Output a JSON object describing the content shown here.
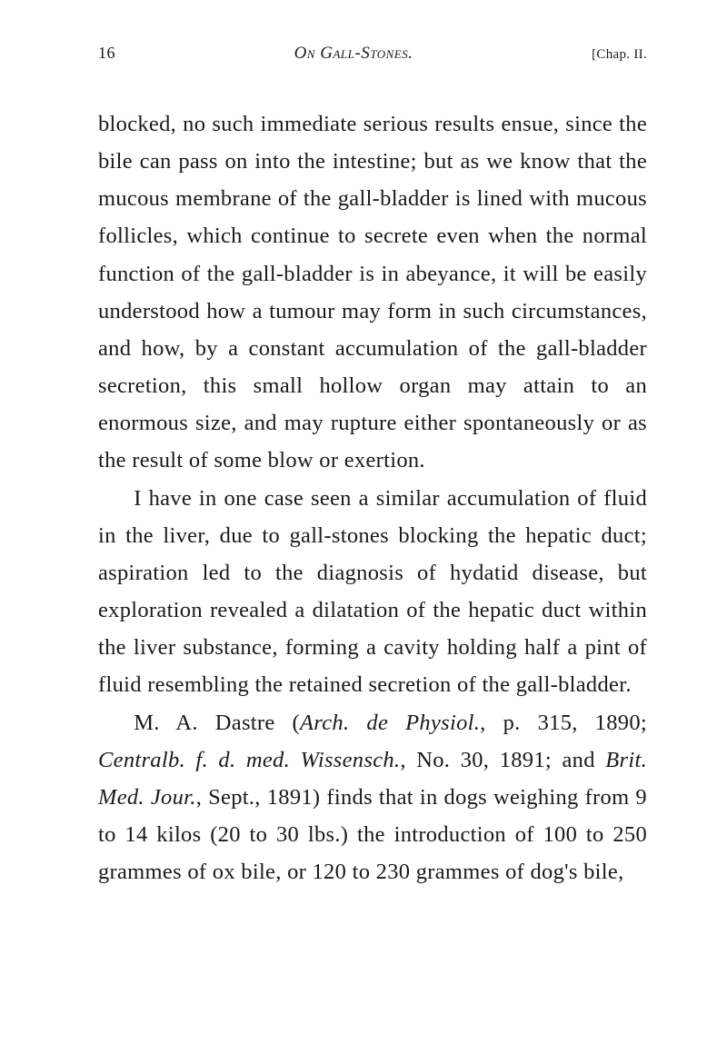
{
  "header": {
    "page_number": "16",
    "running_title": "On Gall-Stones.",
    "chapter": "[Chap. II."
  },
  "paragraphs": {
    "p1": "blocked, no such immediate serious results ensue, since the bile can pass on into the intestine; but as we know that the mucous membrane of the gall-bladder is lined with mucous follicles, which continue to secrete even when the normal function of the gall-bladder is in abeyance, it will be easily understood how a tumour may form in such circumstances, and how, by a constant accumulation of the gall-bladder secretion, this small hollow organ may attain to an enormous size, and may rupture either spontaneously or as the result of some blow or exertion.",
    "p2": "I have in one case seen a similar accumulation of fluid in the liver, due to gall-stones blocking the hepatic duct; aspiration led to the diagnosis of hydatid disease, but exploration revealed a dilatation of the hepatic duct within the liver substance, forming a cavity holding half a pint of fluid resembling the retained secretion of the gall-bladder.",
    "p3_part1": "M. A. Dastre (",
    "p3_italic1": "Arch. de Physiol.",
    "p3_part2": ", p. 315, 1890; ",
    "p3_italic2": "Centralb. f. d. med. Wissensch.",
    "p3_part3": ", No. 30, 1891; and ",
    "p3_italic3": "Brit. Med. Jour.",
    "p3_part4": ", Sept., 1891) finds that in dogs weighing from 9 to 14 kilos (20 to 30 lbs.) the introduction of 100 to 250 grammes of ox bile, or 120 to 230 grammes of dog's bile,"
  }
}
